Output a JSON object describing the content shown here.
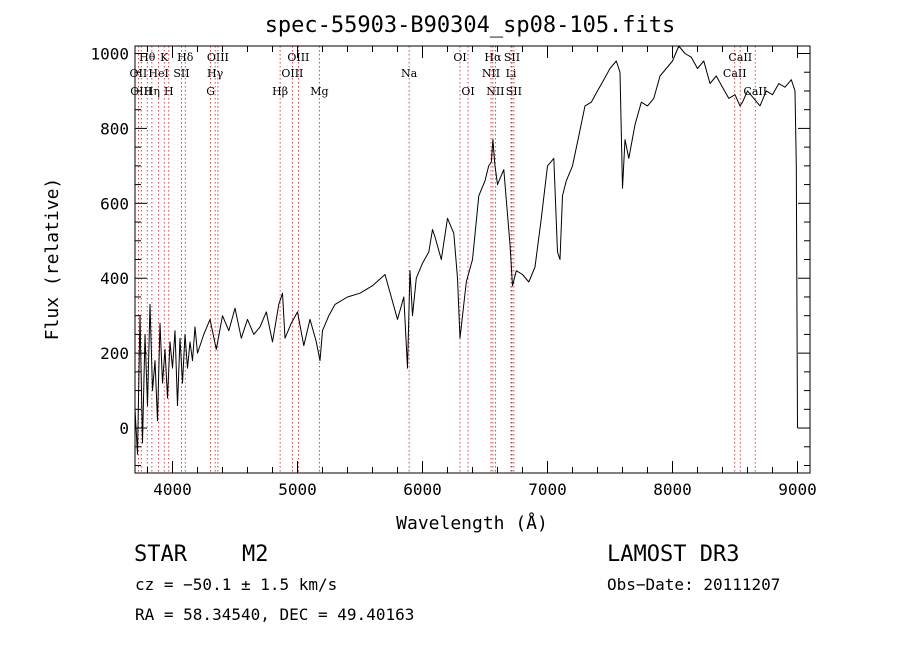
{
  "chart_data": {
    "type": "line",
    "title": "spec-55903-B90304_sp08-105.fits",
    "xlabel": "Wavelength (Å)",
    "ylabel": "Flux (relative)",
    "xlim": [
      3700,
      9100
    ],
    "ylim": [
      -120,
      1020
    ],
    "x_ticks": [
      4000,
      5000,
      6000,
      7000,
      8000,
      9000
    ],
    "y_ticks": [
      0,
      200,
      400,
      600,
      800,
      1000
    ],
    "series": [
      {
        "name": "flux",
        "x": [
          3700,
          3720,
          3740,
          3760,
          3780,
          3800,
          3820,
          3840,
          3860,
          3880,
          3900,
          3920,
          3940,
          3960,
          3980,
          4000,
          4020,
          4040,
          4060,
          4080,
          4100,
          4120,
          4140,
          4160,
          4180,
          4200,
          4250,
          4300,
          4350,
          4400,
          4450,
          4500,
          4550,
          4600,
          4650,
          4700,
          4750,
          4800,
          4850,
          4880,
          4900,
          4950,
          5000,
          5050,
          5100,
          5150,
          5180,
          5200,
          5250,
          5300,
          5400,
          5500,
          5600,
          5700,
          5800,
          5850,
          5880,
          5900,
          5920,
          5950,
          6000,
          6050,
          6080,
          6100,
          6150,
          6200,
          6250,
          6280,
          6300,
          6350,
          6400,
          6450,
          6500,
          6530,
          6550,
          6563,
          6580,
          6600,
          6650,
          6700,
          6720,
          6750,
          6800,
          6850,
          6900,
          6950,
          7000,
          7050,
          7080,
          7100,
          7120,
          7150,
          7200,
          7250,
          7300,
          7350,
          7400,
          7450,
          7500,
          7550,
          7580,
          7600,
          7620,
          7650,
          7700,
          7750,
          7800,
          7850,
          7900,
          7950,
          8000,
          8050,
          8100,
          8150,
          8200,
          8250,
          8300,
          8350,
          8400,
          8450,
          8500,
          8540,
          8560,
          8600,
          8650,
          8700,
          8750,
          8800,
          8850,
          8900,
          8950,
          8980,
          8990,
          9000
        ],
        "values": [
          50,
          -70,
          300,
          -40,
          250,
          60,
          330,
          100,
          180,
          20,
          280,
          120,
          210,
          80,
          230,
          160,
          260,
          60,
          240,
          120,
          250,
          160,
          230,
          180,
          270,
          200,
          250,
          290,
          210,
          300,
          260,
          320,
          240,
          290,
          250,
          270,
          310,
          230,
          330,
          360,
          240,
          280,
          310,
          220,
          290,
          230,
          180,
          260,
          300,
          330,
          350,
          360,
          380,
          410,
          290,
          350,
          160,
          420,
          300,
          400,
          440,
          470,
          530,
          510,
          450,
          560,
          520,
          400,
          240,
          390,
          450,
          620,
          660,
          700,
          710,
          770,
          700,
          650,
          690,
          490,
          380,
          420,
          410,
          390,
          430,
          560,
          700,
          720,
          470,
          450,
          620,
          660,
          700,
          780,
          860,
          870,
          900,
          930,
          960,
          980,
          950,
          640,
          770,
          720,
          810,
          870,
          860,
          880,
          940,
          960,
          980,
          1020,
          1000,
          990,
          960,
          980,
          920,
          940,
          910,
          880,
          890,
          860,
          870,
          900,
          880,
          860,
          900,
          890,
          920,
          910,
          930,
          900,
          700,
          0
        ]
      }
    ],
    "line_labels": [
      {
        "label": "Hθ",
        "x": 3798,
        "row": 0
      },
      {
        "label": "OII",
        "x": 3727,
        "row": 1
      },
      {
        "label": "OIII",
        "x": 3750,
        "row": 2
      },
      {
        "label": "K",
        "x": 3934,
        "row": 0
      },
      {
        "label": "HeI",
        "x": 3889,
        "row": 1
      },
      {
        "label": "Hη",
        "x": 3835,
        "row": 2
      },
      {
        "label": "Hδ",
        "x": 4102,
        "row": 0
      },
      {
        "label": "SII",
        "x": 4072,
        "row": 1
      },
      {
        "label": "H",
        "x": 3970,
        "row": 2
      },
      {
        "label": "OIII",
        "x": 4363,
        "row": 0
      },
      {
        "label": "Hγ",
        "x": 4341,
        "row": 1
      },
      {
        "label": "G",
        "x": 4305,
        "row": 2
      },
      {
        "label": "OIII",
        "x": 5007,
        "row": 0
      },
      {
        "label": "OIII",
        "x": 4959,
        "row": 1
      },
      {
        "label": "Hβ",
        "x": 4861,
        "row": 2
      },
      {
        "label": "Mg",
        "x": 5175,
        "row": 2
      },
      {
        "label": "Na",
        "x": 5893,
        "row": 1
      },
      {
        "label": "OI",
        "x": 6300,
        "row": 0
      },
      {
        "label": "OI",
        "x": 6364,
        "row": 2
      },
      {
        "label": "Hα",
        "x": 6563,
        "row": 0
      },
      {
        "label": "SII",
        "x": 6716,
        "row": 0
      },
      {
        "label": "NII",
        "x": 6548,
        "row": 1
      },
      {
        "label": "Li",
        "x": 6708,
        "row": 1
      },
      {
        "label": "NII",
        "x": 6583,
        "row": 2
      },
      {
        "label": "SII",
        "x": 6731,
        "row": 2
      },
      {
        "label": "CaII",
        "x": 8542,
        "row": 0
      },
      {
        "label": "CaII",
        "x": 8498,
        "row": 1
      },
      {
        "label": "CaII",
        "x": 8662,
        "row": 2
      }
    ],
    "line_markers": [
      3727,
      3750,
      3798,
      3835,
      3889,
      3934,
      3970,
      4072,
      4102,
      4305,
      4341,
      4363,
      4861,
      4959,
      5007,
      5175,
      5893,
      6300,
      6364,
      6548,
      6563,
      6583,
      6708,
      6716,
      6731,
      8498,
      8542,
      8662
    ]
  },
  "info": {
    "object_class": "STAR",
    "subclass": "M2",
    "survey": "LAMOST DR3",
    "redshift": "cz = −50.1 ± 1.5 km/s",
    "obs_date": "Obs−Date: 20111207",
    "coordinates": "RA =  58.34540, DEC =  49.40163"
  },
  "colors": {
    "spectrum": "#000000",
    "marker": "#b22222",
    "axes": "#000000"
  }
}
